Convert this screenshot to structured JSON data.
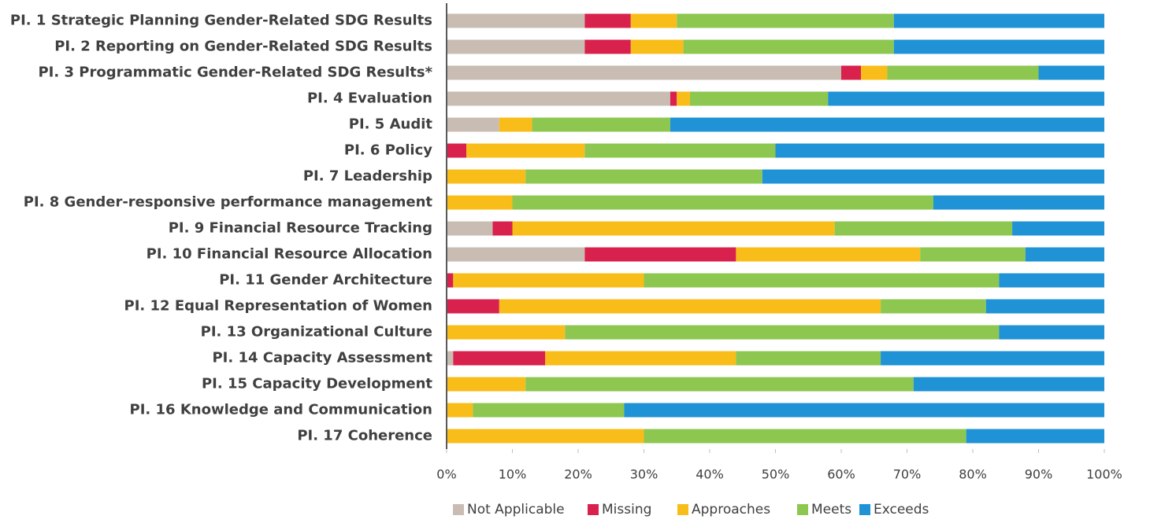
{
  "chart_data": {
    "type": "stacked_bar_horizontal",
    "categories": [
      "PI. 1 Strategic Planning Gender-Related SDG Results",
      "PI. 2 Reporting on Gender-Related SDG Results",
      "PI. 3 Programmatic Gender-Related SDG Results*",
      "PI. 4 Evaluation",
      "PI. 5 Audit",
      "PI. 6 Policy",
      "PI. 7 Leadership",
      "PI. 8  Gender-responsive performance management",
      "PI. 9 Financial Resource Tracking",
      "PI. 10 Financial Resource Allocation",
      "PI. 11 Gender Architecture",
      "PI. 12 Equal Representation of Women",
      "PI. 13 Organizational Culture",
      "PI. 14 Capacity Assessment",
      "PI. 15 Capacity Development",
      "PI. 16 Knowledge and Communication",
      "PI. 17 Coherence"
    ],
    "series": [
      {
        "name": "Not Applicable",
        "color": "#c9bdb3",
        "values": [
          21,
          21,
          60,
          34,
          8,
          0,
          0,
          0,
          7,
          21,
          0,
          0,
          0,
          1,
          0,
          0,
          0
        ]
      },
      {
        "name": "Missing",
        "color": "#d9214e",
        "values": [
          7,
          7,
          3,
          1,
          0,
          3,
          0,
          0,
          3,
          23,
          1,
          8,
          0,
          14,
          0,
          0,
          0
        ]
      },
      {
        "name": "Approaches",
        "color": "#f9bd1a",
        "values": [
          7,
          8,
          4,
          2,
          5,
          18,
          12,
          10,
          49,
          28,
          29,
          58,
          18,
          29,
          12,
          4,
          30
        ]
      },
      {
        "name": "Meets",
        "color": "#8dc750",
        "values": [
          33,
          32,
          23,
          21,
          21,
          29,
          36,
          64,
          27,
          16,
          54,
          16,
          66,
          22,
          59,
          23,
          49
        ]
      },
      {
        "name": "Exceeds",
        "color": "#1f93d5",
        "values": [
          32,
          32,
          10,
          42,
          66,
          50,
          52,
          26,
          14,
          12,
          16,
          18,
          16,
          34,
          29,
          73,
          21
        ]
      }
    ],
    "xlim": [
      0,
      100
    ],
    "xticks": [
      {
        "value": 0,
        "label": "0%"
      },
      {
        "value": 10,
        "label": "10%"
      },
      {
        "value": 20,
        "label": "20%"
      },
      {
        "value": 30,
        "label": "30%"
      },
      {
        "value": 40,
        "label": "40%"
      },
      {
        "value": 50,
        "label": "50%"
      },
      {
        "value": 60,
        "label": "60%"
      },
      {
        "value": 70,
        "label": "70%"
      },
      {
        "value": 80,
        "label": "80%"
      },
      {
        "value": 90,
        "label": "90%"
      },
      {
        "value": 100,
        "label": "100%"
      }
    ],
    "grid": false,
    "legend": "bottom"
  }
}
